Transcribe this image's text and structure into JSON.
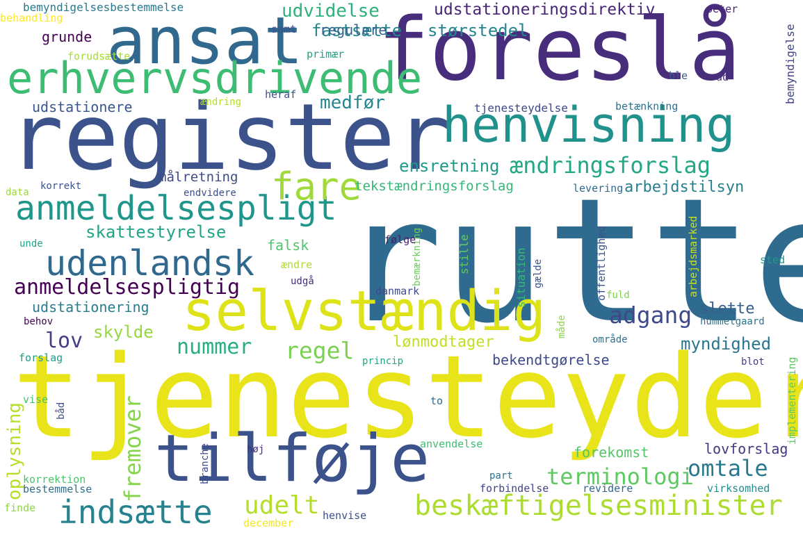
{
  "words": [
    {
      "text": "rutte",
      "color": "#2f6b8e"
    },
    {
      "text": "tjenesteyder",
      "color": "#e8e419"
    },
    {
      "text": "register",
      "color": "#3b528b"
    },
    {
      "text": "foreslå",
      "color": "#472d7b"
    },
    {
      "text": "ansat",
      "color": "#31688e"
    },
    {
      "text": "erhvervsdrivende",
      "color": "#3dbc74"
    },
    {
      "text": "henvisning",
      "color": "#21918c"
    },
    {
      "text": "selvstændig",
      "color": "#dde318"
    },
    {
      "text": "tilføje",
      "color": "#3b528b"
    },
    {
      "text": "anmeldelsespligt",
      "color": "#1f968b"
    },
    {
      "text": "udenlandsk",
      "color": "#31688e"
    },
    {
      "text": "indsætte",
      "color": "#26828e"
    },
    {
      "text": "beskæftigelsesminister",
      "color": "#addc30"
    },
    {
      "text": "fare",
      "color": "#a0da39"
    },
    {
      "text": "adgang",
      "color": "#3e4989"
    },
    {
      "text": "anmeldelsespligtig",
      "color": "#440154"
    },
    {
      "text": "nummer",
      "color": "#29af7f"
    },
    {
      "text": "regel",
      "color": "#7ad151"
    },
    {
      "text": "udelt",
      "color": "#b5de2b"
    },
    {
      "text": "omtale",
      "color": "#2a788e"
    },
    {
      "text": "fremover",
      "color": "#86d549"
    },
    {
      "text": "lov",
      "color": "#433e85"
    },
    {
      "text": "terminologi",
      "color": "#5ec962"
    },
    {
      "text": "ændringsforslag",
      "color": "#22a884"
    },
    {
      "text": "udstationeringsdirektiv",
      "color": "#482576"
    },
    {
      "text": "udvidelse",
      "color": "#2db27d"
    },
    {
      "text": "fastsætte",
      "color": "#23888e"
    },
    {
      "text": "størstedel",
      "color": "#25858e"
    },
    {
      "text": "ensretning",
      "color": "#1f998a"
    },
    {
      "text": "medfør",
      "color": "#24868e"
    },
    {
      "text": "skattestyrelse",
      "color": "#20a386"
    },
    {
      "text": "udstationere",
      "color": "#39568c"
    },
    {
      "text": "udstationering",
      "color": "#287c8e"
    },
    {
      "text": "myndighed",
      "color": "#2a768e"
    },
    {
      "text": "lønmodtager",
      "color": "#c2df23"
    },
    {
      "text": "skylde",
      "color": "#95d840"
    },
    {
      "text": "oplysning",
      "color": "#b8de29"
    },
    {
      "text": "grunde",
      "color": "#440154"
    },
    {
      "text": "regulere",
      "color": "#33638d"
    },
    {
      "text": "tekstændringsforslag",
      "color": "#35b779"
    },
    {
      "text": "arbejdstilsyn",
      "color": "#27808e"
    },
    {
      "text": "målretning",
      "color": "#3e4a89"
    },
    {
      "text": "slette",
      "color": "#365d8d"
    },
    {
      "text": "falsk",
      "color": "#50c46a"
    },
    {
      "text": "forekomst",
      "color": "#52c569"
    },
    {
      "text": "bekendtgørelse",
      "color": "#3e4989"
    },
    {
      "text": "lovforslag",
      "color": "#453781"
    },
    {
      "text": "bemyndigelsesbestemmelse",
      "color": "#2a788e"
    },
    {
      "text": "behandling",
      "color": "#fde725"
    },
    {
      "text": "samt",
      "color": "#3b528b"
    },
    {
      "text": "forudsætte",
      "color": "#a5db36"
    },
    {
      "text": "primær",
      "color": "#1fa088"
    },
    {
      "text": "heraf",
      "color": "#3b518b"
    },
    {
      "text": "ændring",
      "color": "#b5de2b"
    },
    {
      "text": "peter",
      "color": "#482374"
    },
    {
      "text": "bemyndigelse",
      "color": "#414487"
    },
    {
      "text": "ble",
      "color": "#38598c"
    },
    {
      "text": "ad",
      "color": "#46327e"
    },
    {
      "text": "tjenesteydelse",
      "color": "#3f4788"
    },
    {
      "text": "betænkning",
      "color": "#2c728e"
    },
    {
      "text": "data",
      "color": "#9bd93c"
    },
    {
      "text": "korrekt",
      "color": "#3a548c"
    },
    {
      "text": "endvidere",
      "color": "#3c4f8a"
    },
    {
      "text": "levering",
      "color": "#306a8e"
    },
    {
      "text": "bemærkning",
      "color": "#6ccd5a"
    },
    {
      "text": "stille",
      "color": "#63cb5f"
    },
    {
      "text": "offentlighed",
      "color": "#3a548c"
    },
    {
      "text": "arbejdsmarked",
      "color": "#c8e020"
    },
    {
      "text": "unde",
      "color": "#20a486"
    },
    {
      "text": "følge",
      "color": "#481c6e"
    },
    {
      "text": "ændre",
      "color": "#addc30"
    },
    {
      "text": "udgå",
      "color": "#472c7a"
    },
    {
      "text": "situation",
      "color": "#37b878"
    },
    {
      "text": "gælde",
      "color": "#3a538b"
    },
    {
      "text": "sted",
      "color": "#1f9a8a"
    },
    {
      "text": "danmark",
      "color": "#3e4989"
    },
    {
      "text": "fuld",
      "color": "#7fd34e"
    },
    {
      "text": "behov",
      "color": "#440154"
    },
    {
      "text": "måde",
      "color": "#8bd646"
    },
    {
      "text": "hummelgaard",
      "color": "#2c728e"
    },
    {
      "text": "område",
      "color": "#2d718e"
    },
    {
      "text": "forslag",
      "color": "#1e9c89"
    },
    {
      "text": "princip",
      "color": "#21a685"
    },
    {
      "text": "blot",
      "color": "#433e85"
    },
    {
      "text": "implementering",
      "color": "#5ec962"
    },
    {
      "text": "vise",
      "color": "#48c16e"
    },
    {
      "text": "båd",
      "color": "#3d4d8a"
    },
    {
      "text": "to",
      "color": "#2f6c8e"
    },
    {
      "text": "branche",
      "color": "#3e4a89"
    },
    {
      "text": "høj",
      "color": "#472e7c"
    },
    {
      "text": "anvendelse",
      "color": "#3fbc73"
    },
    {
      "text": "korrektion",
      "color": "#4cc26c"
    },
    {
      "text": "bestemmelse",
      "color": "#2e6f8e"
    },
    {
      "text": "part",
      "color": "#2d708e"
    },
    {
      "text": "forbindelse",
      "color": "#414487"
    },
    {
      "text": "revidere",
      "color": "#31668e"
    },
    {
      "text": "virksomhed",
      "color": "#228b8d"
    },
    {
      "text": "finde",
      "color": "#8ed645"
    },
    {
      "text": "henvise",
      "color": "#3d4e8a"
    },
    {
      "text": "december",
      "color": "#f5e61e"
    }
  ]
}
